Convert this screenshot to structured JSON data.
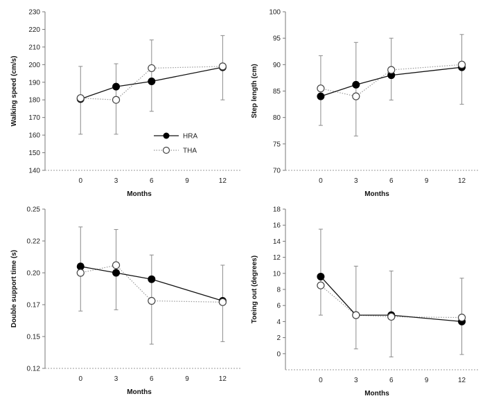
{
  "chart_data": [
    {
      "type": "line",
      "xlabel": "Months",
      "ylabel": "Walking speed (cm/s)",
      "x": [
        0,
        3,
        6,
        12
      ],
      "xticks": [
        0,
        3,
        6,
        9,
        12
      ],
      "xlim": [
        -3,
        13.5
      ],
      "ylim": [
        140,
        230
      ],
      "yticks": [
        140,
        150,
        160,
        170,
        180,
        190,
        200,
        210,
        220,
        230
      ],
      "ytick_labels": [
        "140",
        "150",
        "160",
        "170",
        "180",
        "190",
        "200",
        "210",
        "220",
        "230"
      ],
      "series": [
        {
          "name": "HRA",
          "values": [
            180.5,
            187.5,
            190.5,
            198.5
          ],
          "marker": "filled",
          "line": "solid"
        },
        {
          "name": "THA",
          "values": [
            181,
            180,
            198,
            199
          ],
          "marker": "open",
          "line": "dotted",
          "error_low": [
            160.5,
            160.5,
            173.5,
            180
          ],
          "error_high": [
            199,
            200.5,
            214,
            216.5
          ]
        }
      ],
      "legend": "inside-center-left"
    },
    {
      "type": "line",
      "xlabel": "Months",
      "ylabel": "Step length (cm)",
      "x": [
        0,
        3,
        6,
        12
      ],
      "xticks": [
        0,
        3,
        6,
        9,
        12
      ],
      "xlim": [
        -3,
        13.5
      ],
      "ylim": [
        70,
        100
      ],
      "yticks": [
        70,
        75,
        80,
        85,
        90,
        95,
        100
      ],
      "ytick_labels": [
        "70",
        "75",
        "80",
        "85",
        "90",
        "95",
        "100"
      ],
      "series": [
        {
          "name": "HRA",
          "values": [
            84,
            86.2,
            88,
            89.5
          ],
          "marker": "filled",
          "line": "solid"
        },
        {
          "name": "THA",
          "values": [
            85.5,
            84,
            89,
            90
          ],
          "marker": "open",
          "line": "dotted",
          "error_low": [
            78.5,
            76.5,
            83.3,
            82.5
          ],
          "error_high": [
            91.7,
            94.2,
            95,
            95.7
          ]
        }
      ]
    },
    {
      "type": "line",
      "xlabel": "Months",
      "ylabel": "Double support time (s)",
      "x": [
        0,
        3,
        6,
        12
      ],
      "xticks": [
        0,
        3,
        6,
        9,
        12
      ],
      "xlim": [
        -3,
        13.5
      ],
      "ylim": [
        0.125,
        0.25
      ],
      "yticks": [
        0.125,
        0.15,
        0.175,
        0.2,
        0.225,
        0.25
      ],
      "ytick_labels": [
        "0.12",
        "0.15",
        "0.17",
        "0.20",
        "0.22",
        "0.25"
      ],
      "series": [
        {
          "name": "HRA",
          "values": [
            0.205,
            0.2,
            0.195,
            0.178
          ],
          "marker": "filled",
          "line": "solid"
        },
        {
          "name": "THA",
          "values": [
            0.2,
            0.206,
            0.178,
            0.177
          ],
          "marker": "open",
          "line": "dotted",
          "error_low": [
            0.17,
            0.171,
            0.144,
            0.146
          ],
          "error_high": [
            0.236,
            0.234,
            0.214,
            0.206
          ]
        }
      ]
    },
    {
      "type": "line",
      "xlabel": "Months",
      "ylabel": "Toeing out (degrees)",
      "x": [
        0,
        3,
        6,
        12
      ],
      "xticks": [
        0,
        3,
        6,
        9,
        12
      ],
      "xlim": [
        -3,
        13.5
      ],
      "ylim": [
        -2,
        18
      ],
      "yticks": [
        0,
        2,
        4,
        6,
        8,
        10,
        12,
        14,
        16,
        18
      ],
      "ytick_labels": [
        "0",
        "2",
        "4",
        "6",
        "8",
        "10",
        "12",
        "14",
        "16",
        "18"
      ],
      "series": [
        {
          "name": "HRA",
          "values": [
            9.6,
            4.8,
            4.8,
            4
          ],
          "marker": "filled",
          "line": "solid"
        },
        {
          "name": "THA",
          "values": [
            8.5,
            4.8,
            4.6,
            4.5
          ],
          "marker": "open",
          "line": "dotted",
          "error_low": [
            4.8,
            0.6,
            -0.4,
            -0.1
          ],
          "error_high": [
            15.5,
            10.9,
            10.3,
            9.4
          ]
        }
      ]
    }
  ]
}
